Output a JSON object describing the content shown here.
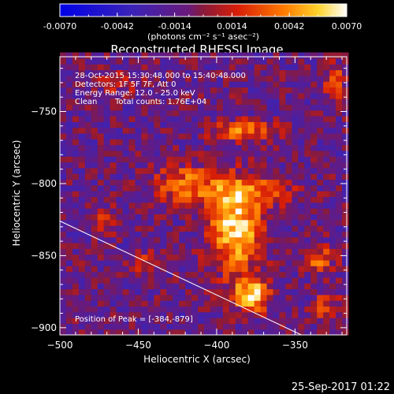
{
  "colorbar": {
    "ticks": [
      "-0.0070",
      "-0.0042",
      "-0.0014",
      "0.0014",
      "0.0042",
      "0.0070"
    ],
    "label": "(photons cm⁻² s⁻¹ asec⁻²)"
  },
  "chart_data": {
    "type": "heatmap",
    "title": "Reconstructed RHESSI Image",
    "xlabel": "Heliocentric X (arcsec)",
    "ylabel": "Heliocentric Y (arcsec)",
    "xlim": [
      -500,
      -317
    ],
    "ylim": [
      -905,
      -712
    ],
    "x_ticks": [
      -500,
      -450,
      -400,
      -350
    ],
    "x_tick_labels": [
      "−500",
      "−450",
      "−400",
      "−350"
    ],
    "y_ticks": [
      -750,
      -800,
      -850,
      -900
    ],
    "y_tick_labels": [
      "−750",
      "−800",
      "−850",
      "−900"
    ],
    "colorbar_range": [
      -0.007,
      0.007
    ],
    "colormap": "blue-purple-red-yellow-white",
    "annotations": [
      "28-Oct-2015 15:30:48.000 to 15:40:48.000",
      "Detectors: 1F 5F 7F, Att 0",
      "Energy Range: 12.0 - 25.0 keV",
      "Clean",
      "Total counts: 1.76E+04"
    ],
    "peak_label": "Position of Peak = [-384,-879]",
    "peak": [
      -384,
      -879
    ],
    "limb_line": [
      [
        -500,
        -826
      ],
      [
        -346,
        -905
      ]
    ],
    "footer": "25-Sep-2017 01:22",
    "sources": [
      {
        "x": -388,
        "y": -832,
        "amp": 0.0075,
        "sx": 11,
        "sy": 20
      },
      {
        "x": -378,
        "y": -805,
        "amp": 0.004,
        "sx": 20,
        "sy": 8
      },
      {
        "x": -420,
        "y": -800,
        "amp": 0.0045,
        "sx": 14,
        "sy": 9
      },
      {
        "x": -378,
        "y": -877,
        "amp": 0.0075,
        "sx": 8,
        "sy": 8
      },
      {
        "x": -383,
        "y": -763,
        "amp": 0.005,
        "sx": 13,
        "sy": 5
      },
      {
        "x": -335,
        "y": -852,
        "amp": 0.004,
        "sx": 7,
        "sy": 7
      },
      {
        "x": -325,
        "y": -730,
        "amp": 0.004,
        "sx": 5,
        "sy": 9
      },
      {
        "x": -470,
        "y": -826,
        "amp": 0.0025,
        "sx": 7,
        "sy": 7
      },
      {
        "x": -330,
        "y": -885,
        "amp": 0.003,
        "sx": 6,
        "sy": 8
      },
      {
        "x": -445,
        "y": -855,
        "amp": 0.0025,
        "sx": 7,
        "sy": 6
      },
      {
        "x": -460,
        "y": -730,
        "amp": 0.0025,
        "sx": 10,
        "sy": 5
      }
    ],
    "background": -0.0012,
    "grid": false
  }
}
